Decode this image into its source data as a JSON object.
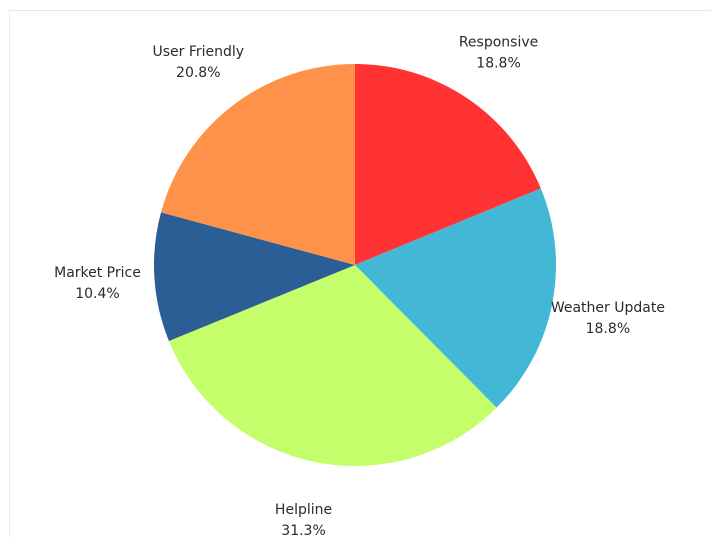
{
  "chart_data": {
    "type": "pie",
    "title": "",
    "slices": [
      {
        "label": "Responsive",
        "value": 18.8,
        "display": "18.8%",
        "color": "#ff3333"
      },
      {
        "label": "Weather Update",
        "value": 18.8,
        "display": "18.8%",
        "color": "#42b8d6"
      },
      {
        "label": "Helpline",
        "value": 31.3,
        "display": "31.3%",
        "color": "#c4ff6b"
      },
      {
        "label": "Market Price",
        "value": 10.4,
        "display": "10.4%",
        "color": "#2c5e96"
      },
      {
        "label": "User Friendly",
        "value": 20.8,
        "display": "20.8%",
        "color": "#ff924a"
      }
    ],
    "start_angle": "12 o'clock",
    "direction": "clockwise",
    "legend": "none",
    "labels_outside": true
  }
}
